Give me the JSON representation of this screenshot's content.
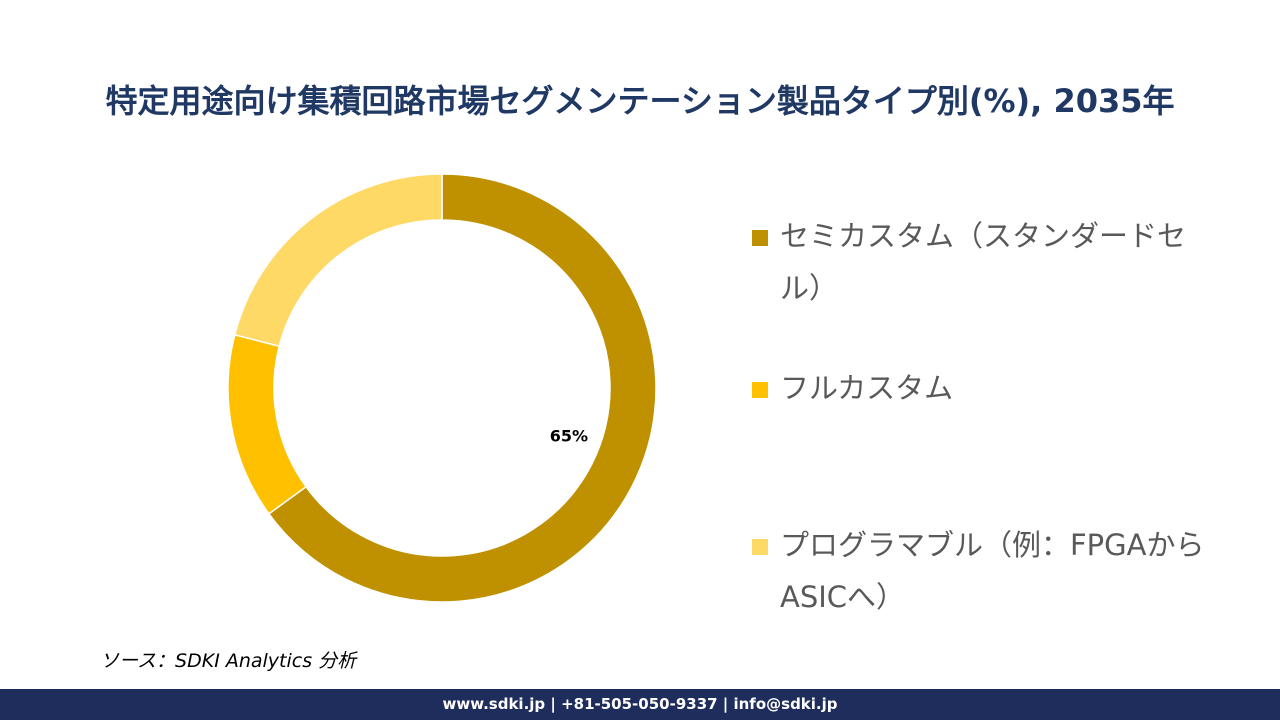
{
  "title": "特定用途向け集積回路市場セグメンテーション製品タイプ別(%), 2035年",
  "chart_data": {
    "type": "donut",
    "title": "特定用途向け集積回路市場セグメンテーション製品タイプ別(%), 2035年",
    "categories": [
      "セミカスタム（スタンダードセル）",
      "フルカスタム",
      "プログラマブル（例：FPGAからASICへ）"
    ],
    "values": [
      65,
      14,
      21
    ],
    "data_labels": [
      "65%",
      "",
      ""
    ],
    "colors": [
      "#bf9000",
      "#ffc000",
      "#ffd966"
    ],
    "legend_position": "right"
  },
  "source": "ソース：SDKI Analytics 分析",
  "footer": "www.sdki.jp | +81-505-050-9337 | info@sdki.jp"
}
